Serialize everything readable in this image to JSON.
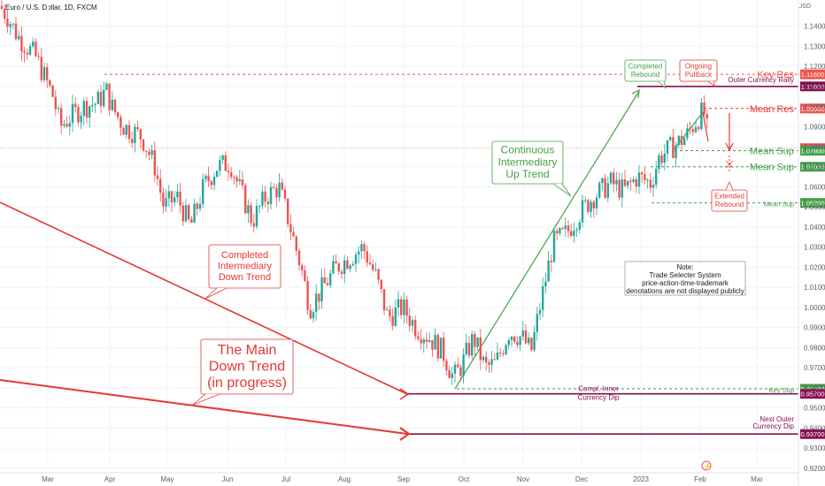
{
  "header": {
    "symbol": "Euro / U.S. Dollar, 1D, FXCM",
    "currency": "USD"
  },
  "colors": {
    "up": "#26a69a",
    "down": "#ef5350",
    "annot_red": "#e53935",
    "annot_green": "#43a047",
    "level_maroon": "#880e4f",
    "grid": "#f0f3fa"
  },
  "chart_data": {
    "type": "candlestick",
    "title": "",
    "x_axis": {
      "labels": [
        "Mar",
        "Apr",
        "May",
        "Jun",
        "Jul",
        "Aug",
        "Sep",
        "Oct",
        "Nov",
        "Dec",
        "2023",
        "Feb",
        "Mar"
      ]
    },
    "y_axis": {
      "range": [
        0.915,
        1.158
      ],
      "ticks": [
        "1.14000",
        "1.13000",
        "1.12000",
        "1.11000",
        "1.10000",
        "1.09000",
        "1.08000",
        "1.07000",
        "1.06000",
        "1.05000",
        "1.04000",
        "1.03000",
        "1.02000",
        "1.01000",
        "1.00000",
        "0.99000",
        "0.98000",
        "0.97000",
        "0.96000",
        "0.95000",
        "0.94000",
        "0.93000",
        "0.92000"
      ]
    },
    "price_path": [
      [
        0,
        1.15
      ],
      [
        8,
        1.145
      ],
      [
        20,
        1.135
      ],
      [
        40,
        1.125
      ],
      [
        60,
        1.105
      ],
      [
        68,
        1.09
      ],
      [
        80,
        1.095
      ],
      [
        95,
        1.1
      ],
      [
        110,
        1.102
      ],
      [
        120,
        1.108
      ],
      [
        126,
        1.1
      ],
      [
        140,
        1.09
      ],
      [
        160,
        1.085
      ],
      [
        175,
        1.07
      ],
      [
        185,
        1.05
      ],
      [
        200,
        1.055
      ],
      [
        215,
        1.04
      ],
      [
        230,
        1.06
      ],
      [
        245,
        1.07
      ],
      [
        260,
        1.072
      ],
      [
        270,
        1.06
      ],
      [
        285,
        1.043
      ],
      [
        300,
        1.055
      ],
      [
        315,
        1.06
      ],
      [
        325,
        1.045
      ],
      [
        340,
        1.02
      ],
      [
        350,
        1.0
      ],
      [
        365,
        1.01
      ],
      [
        380,
        1.02
      ],
      [
        395,
        1.025
      ],
      [
        410,
        1.03
      ],
      [
        425,
        1.015
      ],
      [
        438,
        0.995
      ],
      [
        455,
        1.0
      ],
      [
        470,
        0.99
      ],
      [
        485,
        0.985
      ],
      [
        500,
        0.978
      ],
      [
        512,
        0.965
      ],
      [
        520,
        0.97
      ],
      [
        535,
        0.985
      ],
      [
        548,
        0.97
      ],
      [
        560,
        0.972
      ],
      [
        575,
        0.988
      ],
      [
        590,
        0.985
      ],
      [
        600,
        0.978
      ],
      [
        612,
        1.005
      ],
      [
        625,
        1.032
      ],
      [
        640,
        1.037
      ],
      [
        655,
        1.047
      ],
      [
        670,
        1.055
      ],
      [
        690,
        1.062
      ],
      [
        705,
        1.058
      ],
      [
        720,
        1.065
      ],
      [
        735,
        1.062
      ],
      [
        745,
        1.075
      ],
      [
        760,
        1.08
      ],
      [
        775,
        1.085
      ],
      [
        785,
        1.092
      ],
      [
        795,
        1.098
      ],
      [
        800,
        1.085
      ]
    ],
    "annotations": [
      {
        "text": "Completed Intermediary Down Trend",
        "color": "red"
      },
      {
        "text": "The Main Down Trend (in progress)",
        "color": "red"
      },
      {
        "text": "Continuous Intermediary Up Trend",
        "color": "green"
      },
      {
        "text": "Completed Rebound",
        "color": "green"
      },
      {
        "text": "Ongoing Pullback",
        "color": "red"
      },
      {
        "text": "Extended Rebound",
        "color": "red"
      }
    ],
    "levels": [
      {
        "name": "Key Res",
        "value": 1.116,
        "price_label": "1.11600",
        "color": "#ef5350",
        "line": "dashed",
        "label_size": "large"
      },
      {
        "name": "Outer Currency Rally",
        "value": 1.11,
        "price_label": "1.11000",
        "color": "#880e4f",
        "line": "solid",
        "label_size": "small"
      },
      {
        "name": "Mean Res",
        "value": 1.099,
        "price_label": "1.09900",
        "color": "#e53935",
        "line": "dashed",
        "label_size": "large"
      },
      {
        "name": "",
        "value": 1.07925,
        "price_label": "1.07925",
        "color": "#ef5350",
        "line": "dotted",
        "label_size": "none"
      },
      {
        "name": "Mean Sup",
        "value": 1.078,
        "price_label": "1.07800",
        "color": "#43a047",
        "line": "dashed",
        "label_size": "large"
      },
      {
        "name": "Mean Sup",
        "value": 1.07,
        "price_label": "1.07000",
        "color": "#43a047",
        "line": "dashed",
        "label_size": "large"
      },
      {
        "name": "Mean Sup",
        "value": 1.052,
        "price_label": "1.05200",
        "color": "#43a047",
        "line": "dashed",
        "label_size": "small"
      },
      {
        "name": "Key Sup",
        "value": 0.9595,
        "price_label": "0.95950",
        "color": "#43a047",
        "line": "dashed",
        "label_size": "small"
      },
      {
        "name": "Compl. Inner Currency Dip",
        "value": 0.957,
        "price_label": "0.95700",
        "color": "#880e4f",
        "line": "solid",
        "label_size": "small"
      },
      {
        "name": "Next Outer Currency Dip",
        "value": 0.937,
        "price_label": "0.93700",
        "color": "#880e4f",
        "line": "solid",
        "label_size": "small"
      }
    ],
    "note": {
      "title": "Note:",
      "lines": [
        "Trade Selecter System",
        "price-action-time-trademark",
        "denotations are not displayed publicly"
      ]
    }
  }
}
